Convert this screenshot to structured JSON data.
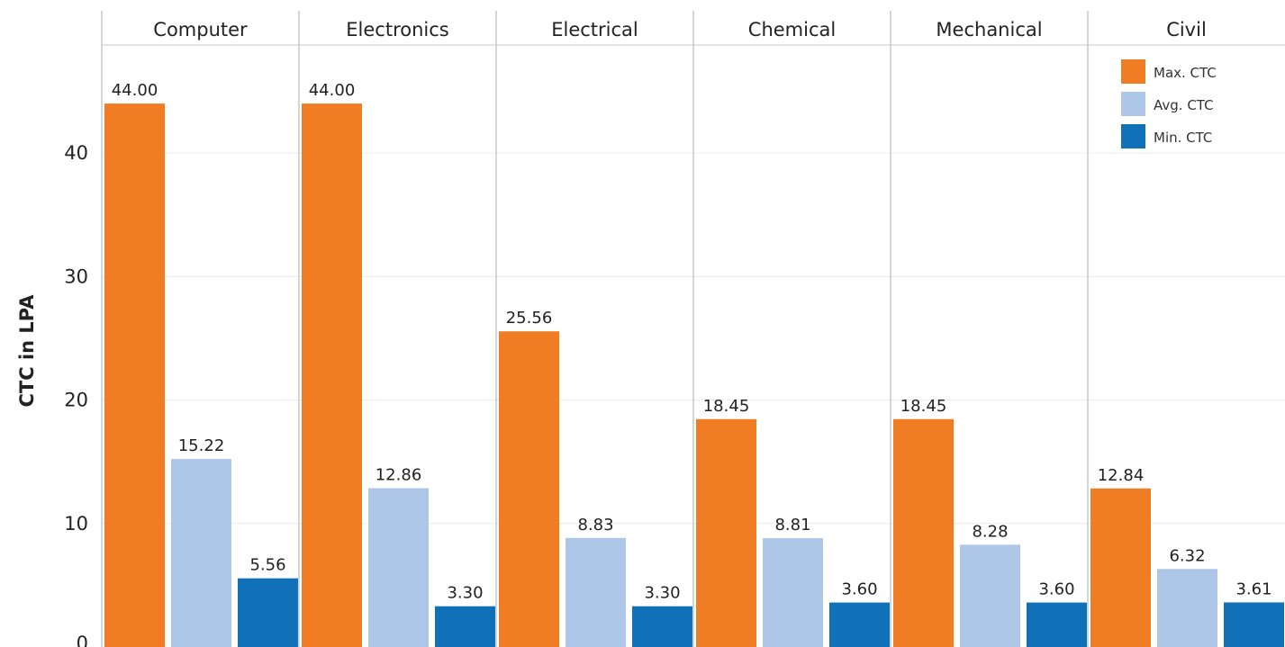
{
  "chart_data": {
    "type": "bar",
    "ylabel": "CTC in LPA",
    "categories": [
      "Computer",
      "Electronics",
      "Electrical",
      "Chemical",
      "Mechanical",
      "Civil"
    ],
    "series": [
      {
        "name": "Max. CTC",
        "color": "#f07c24",
        "values": [
          44.0,
          44.0,
          25.56,
          18.45,
          18.45,
          12.84
        ]
      },
      {
        "name": "Avg. CTC",
        "color": "#aec7e8",
        "values": [
          15.22,
          12.86,
          8.83,
          8.81,
          8.28,
          6.32
        ]
      },
      {
        "name": "Min. CTC",
        "color": "#1070b8",
        "values": [
          5.56,
          3.3,
          3.3,
          3.6,
          3.6,
          3.61
        ]
      }
    ],
    "value_labels": [
      [
        "44.00",
        "44.00",
        "25.56",
        "18.45",
        "18.45",
        "12.84"
      ],
      [
        "15.22",
        "12.86",
        "8.83",
        "8.81",
        "8.28",
        "6.32"
      ],
      [
        "5.56",
        "3.30",
        "3.30",
        "3.60",
        "3.60",
        "3.61"
      ]
    ],
    "yticks": [
      0,
      10,
      20,
      30,
      40
    ],
    "ylim": [
      0,
      49
    ],
    "grid": true,
    "legend_position": "top-right"
  }
}
